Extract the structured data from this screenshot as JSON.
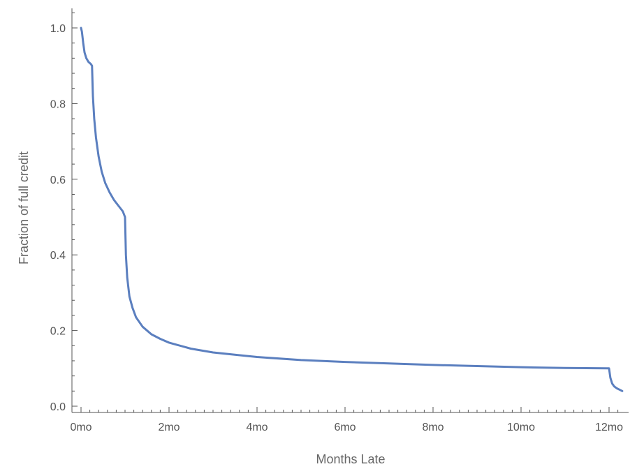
{
  "chart_data": {
    "type": "line",
    "title": "",
    "xlabel": "Months Late",
    "ylabel": "Fraction of full credit",
    "xlim": [
      0,
      12.3
    ],
    "ylim": [
      0,
      1.0
    ],
    "grid": false,
    "x_ticks": [
      {
        "value": 0,
        "label": "0mo"
      },
      {
        "value": 2,
        "label": "2mo"
      },
      {
        "value": 4,
        "label": "4mo"
      },
      {
        "value": 6,
        "label": "6mo"
      },
      {
        "value": 8,
        "label": "8mo"
      },
      {
        "value": 10,
        "label": "10mo"
      },
      {
        "value": 12,
        "label": "12mo"
      }
    ],
    "y_ticks": [
      {
        "value": 0.0,
        "label": "0.0"
      },
      {
        "value": 0.2,
        "label": "0.2"
      },
      {
        "value": 0.4,
        "label": "0.4"
      },
      {
        "value": 0.6,
        "label": "0.6"
      },
      {
        "value": 0.8,
        "label": "0.8"
      },
      {
        "value": 1.0,
        "label": "1.0"
      }
    ],
    "series": [
      {
        "color": "#5b7fbf",
        "x": [
          0,
          0.02,
          0.05,
          0.08,
          0.12,
          0.17,
          0.22,
          0.25,
          0.25,
          0.27,
          0.3,
          0.34,
          0.4,
          0.47,
          0.55,
          0.65,
          0.75,
          0.85,
          0.95,
          1.0,
          1.0,
          1.02,
          1.05,
          1.1,
          1.17,
          1.25,
          1.4,
          1.6,
          1.8,
          2.0,
          2.5,
          3.0,
          4.0,
          5.0,
          6.0,
          7.0,
          8.0,
          9.0,
          10.0,
          11.0,
          11.95,
          12.0,
          12.0,
          12.03,
          12.07,
          12.12,
          12.18,
          12.25,
          12.3
        ],
        "values": [
          1.0,
          0.99,
          0.96,
          0.935,
          0.92,
          0.91,
          0.905,
          0.9,
          0.9,
          0.82,
          0.76,
          0.71,
          0.66,
          0.62,
          0.59,
          0.565,
          0.545,
          0.53,
          0.515,
          0.5,
          0.5,
          0.4,
          0.34,
          0.29,
          0.26,
          0.235,
          0.21,
          0.19,
          0.178,
          0.168,
          0.152,
          0.142,
          0.13,
          0.122,
          0.117,
          0.113,
          0.109,
          0.106,
          0.103,
          0.101,
          0.1,
          0.1,
          0.1,
          0.075,
          0.06,
          0.052,
          0.047,
          0.043,
          0.04
        ]
      }
    ]
  }
}
